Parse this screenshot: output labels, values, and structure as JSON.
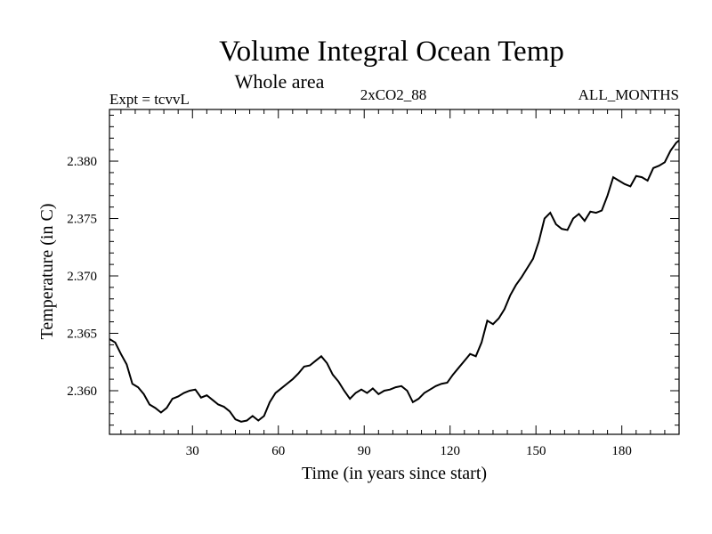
{
  "chart_data": {
    "type": "line",
    "title": "Volume Integral Ocean Temp",
    "subtitle": "Whole area",
    "expt_label": "Expt = tcvvL",
    "run_label": "2xCO2_88",
    "period_label": "ALL_MONTHS",
    "xlabel": "Time (in years since start)",
    "ylabel": "Temperature (in C)",
    "xlim": [
      1,
      200
    ],
    "ylim": [
      2.3562,
      2.3845
    ],
    "xticks": [
      30,
      60,
      90,
      120,
      150,
      180
    ],
    "xtick_labels": [
      "30",
      "60",
      "90",
      "120",
      "150",
      "180"
    ],
    "yticks": [
      2.36,
      2.365,
      2.37,
      2.375,
      2.38
    ],
    "ytick_labels": [
      "2.360",
      "2.365",
      "2.370",
      "2.375",
      "2.380"
    ],
    "grid": false,
    "series": [
      {
        "x": [
          1,
          3,
          5,
          7,
          9,
          11,
          13,
          15,
          17,
          19,
          21,
          23,
          25,
          27,
          29,
          31,
          33,
          35,
          37,
          39,
          41,
          43,
          45,
          47,
          49,
          51,
          53,
          55,
          57,
          59,
          61,
          63,
          65,
          67,
          69,
          71,
          73,
          75,
          77,
          79,
          81,
          83,
          85,
          87,
          89,
          91,
          93,
          95,
          97,
          99,
          101,
          103,
          105,
          107,
          109,
          111,
          113,
          115,
          117,
          119,
          121,
          123,
          125,
          127,
          129,
          131,
          133,
          135,
          137,
          139,
          141,
          143,
          145,
          147,
          149,
          151,
          153,
          155,
          157,
          159,
          161,
          163,
          165,
          167,
          169,
          171,
          173,
          175,
          177,
          179,
          181,
          183,
          185,
          187,
          189,
          191,
          193,
          195,
          197,
          199,
          200
        ],
        "values": [
          2.3645,
          2.3642,
          2.3632,
          2.3623,
          2.3606,
          2.3603,
          2.3597,
          2.3588,
          2.3585,
          2.3581,
          2.3585,
          2.3593,
          2.3595,
          2.3598,
          2.36,
          2.3601,
          2.3594,
          2.3596,
          2.3592,
          2.3588,
          2.3586,
          2.3582,
          2.3575,
          2.3573,
          2.3574,
          2.3578,
          2.3574,
          2.3578,
          2.359,
          2.3598,
          2.3602,
          2.3606,
          2.361,
          2.3615,
          2.3621,
          2.3622,
          2.3626,
          2.363,
          2.3624,
          2.3614,
          2.3608,
          2.36,
          2.3593,
          2.3598,
          2.3601,
          2.3598,
          2.3602,
          2.3597,
          2.36,
          2.3601,
          2.3603,
          2.3604,
          2.36,
          2.359,
          2.3593,
          2.3598,
          2.3601,
          2.3604,
          2.3606,
          2.3607,
          2.3614,
          2.362,
          2.3626,
          2.3632,
          2.363,
          2.3642,
          2.3661,
          2.3658,
          2.3663,
          2.3671,
          2.3683,
          2.3692,
          2.3699,
          2.3707,
          2.3715,
          2.373,
          2.375,
          2.3755,
          2.3745,
          2.3741,
          2.374,
          2.375,
          2.3754,
          2.3748,
          2.3756,
          2.3755,
          2.3757,
          2.377,
          2.3786,
          2.3783,
          2.378,
          2.3778,
          2.3787,
          2.3786,
          2.3783,
          2.3794,
          2.3796,
          2.3799,
          2.3809,
          2.3816,
          2.3818
        ]
      }
    ]
  }
}
